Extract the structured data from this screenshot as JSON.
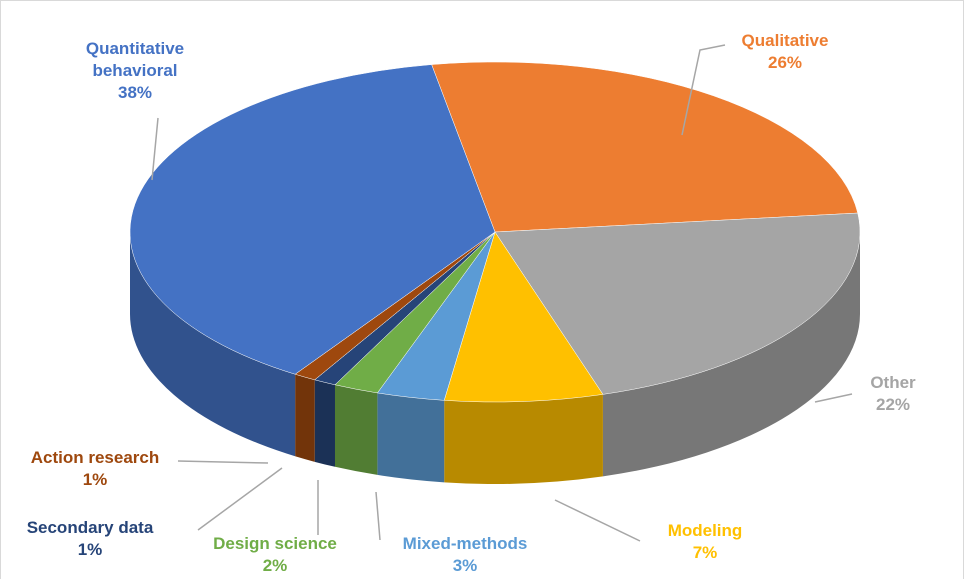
{
  "chart_data": {
    "type": "pie3d",
    "categories": [
      "Qualitative",
      "Other",
      "Modeling",
      "Mixed-methods",
      "Design science",
      "Secondary data",
      "Action research",
      "Quantitative behavioral"
    ],
    "values": [
      26,
      22,
      7,
      3,
      2,
      1,
      1,
      38
    ],
    "value_labels": [
      "26%",
      "22%",
      "7%",
      "3%",
      "2%",
      "1%",
      "1%",
      "38%"
    ],
    "colors": [
      "#ed7d31",
      "#a5a5a5",
      "#ffc000",
      "#5b9bd5",
      "#70ad47",
      "#264478",
      "#9e480e",
      "#4472c4"
    ]
  }
}
